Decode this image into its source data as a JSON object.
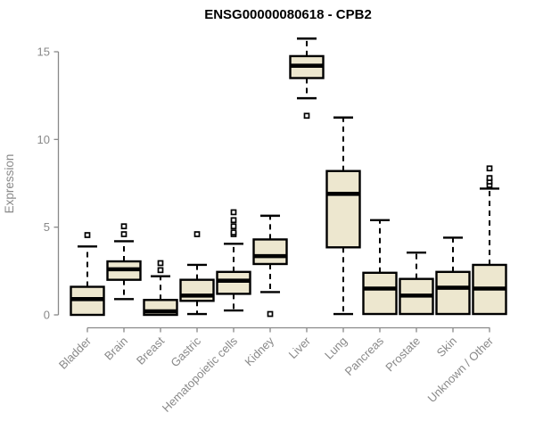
{
  "colors": {
    "box_fill": "#EDE7CF",
    "stroke": "#000000",
    "axis": "#898989",
    "label": "#898989",
    "title": "#000000"
  },
  "chart_data": {
    "type": "boxplot",
    "title": "ENSG00000080618 - CPB2",
    "xlabel": "",
    "ylabel": "Expression",
    "ylim": [
      0,
      15
    ],
    "yticks": [
      0,
      5,
      10,
      15
    ],
    "grid": false,
    "legend": "none",
    "categories": [
      "Bladder",
      "Brain",
      "Breast",
      "Gastric",
      "Hematopoietic cells",
      "Kidney",
      "Liver",
      "Lung",
      "Pancreas",
      "Prostate",
      "Skin",
      "Unknown / Other"
    ],
    "boxes": [
      {
        "category": "Bladder",
        "whisker_low": 0.0,
        "q1": 0.0,
        "median": 0.9,
        "q3": 1.6,
        "whisker_high": 3.9,
        "outliers": [
          4.55
        ]
      },
      {
        "category": "Brain",
        "whisker_low": 0.9,
        "q1": 2.0,
        "median": 2.6,
        "q3": 3.05,
        "whisker_high": 4.2,
        "outliers": [
          4.6,
          5.05
        ]
      },
      {
        "category": "Breast",
        "whisker_low": 0.0,
        "q1": 0.0,
        "median": 0.2,
        "q3": 0.85,
        "whisker_high": 2.2,
        "outliers": [
          2.55,
          2.95
        ]
      },
      {
        "category": "Gastric",
        "whisker_low": 0.05,
        "q1": 0.8,
        "median": 1.1,
        "q3": 2.0,
        "whisker_high": 2.85,
        "outliers": [
          4.6
        ]
      },
      {
        "category": "Hematopoietic cells",
        "whisker_low": 0.25,
        "q1": 1.2,
        "median": 1.95,
        "q3": 2.45,
        "whisker_high": 4.05,
        "outliers": [
          4.6,
          4.7,
          5.05,
          5.4,
          5.85
        ]
      },
      {
        "category": "Kidney",
        "whisker_low": 1.3,
        "q1": 2.9,
        "median": 3.35,
        "q3": 4.3,
        "whisker_high": 5.65,
        "outliers": [
          0.05
        ]
      },
      {
        "category": "Liver",
        "whisker_low": 12.35,
        "q1": 13.5,
        "median": 14.2,
        "q3": 14.75,
        "whisker_high": 15.75,
        "outliers": [
          11.35
        ]
      },
      {
        "category": "Lung",
        "whisker_low": 0.05,
        "q1": 3.85,
        "median": 6.9,
        "q3": 8.2,
        "whisker_high": 11.25,
        "outliers": []
      },
      {
        "category": "Pancreas",
        "whisker_low": 0.05,
        "q1": 0.05,
        "median": 1.5,
        "q3": 2.4,
        "whisker_high": 5.4,
        "outliers": []
      },
      {
        "category": "Prostate",
        "whisker_low": 0.05,
        "q1": 0.05,
        "median": 1.1,
        "q3": 2.05,
        "whisker_high": 3.55,
        "outliers": []
      },
      {
        "category": "Skin",
        "whisker_low": 0.05,
        "q1": 0.05,
        "median": 1.55,
        "q3": 2.45,
        "whisker_high": 4.4,
        "outliers": []
      },
      {
        "category": "Unknown / Other",
        "whisker_low": 0.05,
        "q1": 0.05,
        "median": 1.5,
        "q3": 2.85,
        "whisker_high": 7.2,
        "outliers": [
          7.4,
          7.6,
          7.8,
          8.35
        ]
      }
    ]
  }
}
